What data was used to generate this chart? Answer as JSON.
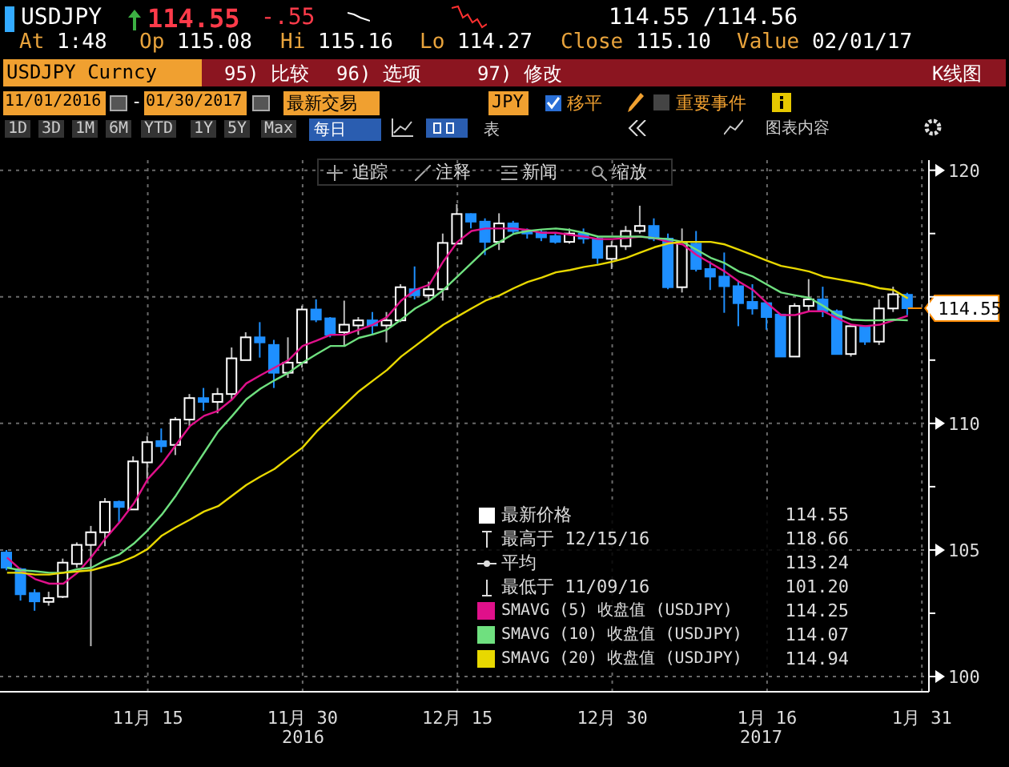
{
  "chart_data": {
    "type": "candlestick",
    "title": "USDJPY",
    "categories": [
      null,
      null,
      null,
      null,
      null,
      null,
      null,
      null,
      null,
      null,
      "11月 15",
      null,
      null,
      null,
      null,
      null,
      null,
      null,
      null,
      null,
      null,
      "11月 30",
      null,
      null,
      null,
      null,
      null,
      null,
      null,
      null,
      null,
      null,
      "12月 15",
      null,
      null,
      null,
      null,
      null,
      null,
      null,
      null,
      null,
      null,
      "12月 30",
      null,
      null,
      null,
      null,
      null,
      null,
      null,
      null,
      null,
      null,
      "1月 16",
      null,
      null,
      null,
      null,
      null,
      null,
      null,
      null,
      null,
      null,
      "1月 31"
    ],
    "ohlc": [
      [
        104.9,
        105.0,
        104.2,
        104.3
      ],
      [
        104.24,
        104.3,
        103.0,
        103.25
      ],
      [
        103.3,
        103.45,
        102.6,
        102.97
      ],
      [
        102.95,
        103.35,
        102.8,
        103.1
      ],
      [
        103.15,
        104.66,
        103.1,
        104.5
      ],
      [
        104.45,
        105.3,
        104.3,
        105.2
      ],
      [
        105.2,
        105.95,
        101.2,
        105.7
      ],
      [
        105.7,
        107.05,
        105.15,
        106.9
      ],
      [
        106.9,
        106.95,
        106.1,
        106.7
      ],
      [
        106.6,
        108.7,
        106.6,
        108.5
      ],
      [
        108.46,
        109.5,
        107.8,
        109.26
      ],
      [
        109.3,
        109.8,
        108.85,
        109.1
      ],
      [
        109.15,
        110.25,
        108.75,
        110.15
      ],
      [
        110.15,
        111.16,
        109.9,
        111.0
      ],
      [
        111.0,
        111.4,
        110.5,
        110.85
      ],
      [
        110.85,
        111.4,
        110.4,
        111.16
      ],
      [
        111.16,
        113.0,
        110.95,
        112.57
      ],
      [
        112.5,
        113.6,
        112.5,
        113.4
      ],
      [
        113.4,
        114.0,
        112.6,
        113.2
      ],
      [
        113.1,
        113.3,
        111.4,
        112.0
      ],
      [
        112.0,
        113.4,
        111.8,
        112.4
      ],
      [
        112.4,
        114.65,
        112.2,
        114.5
      ],
      [
        114.5,
        114.9,
        114.0,
        114.1
      ],
      [
        114.15,
        114.2,
        113.4,
        113.5
      ],
      [
        113.6,
        114.85,
        113.05,
        113.9
      ],
      [
        113.87,
        114.2,
        113.5,
        114.07
      ],
      [
        114.07,
        114.4,
        113.5,
        113.87
      ],
      [
        113.87,
        114.4,
        113.2,
        114.07
      ],
      [
        114.07,
        115.5,
        114.0,
        115.38
      ],
      [
        115.3,
        116.2,
        114.9,
        115.06
      ],
      [
        115.06,
        115.6,
        114.85,
        115.3
      ],
      [
        115.3,
        117.5,
        114.85,
        117.13
      ],
      [
        117.1,
        118.66,
        117.1,
        118.27
      ],
      [
        118.27,
        118.3,
        117.7,
        117.97
      ],
      [
        117.97,
        118.1,
        116.65,
        117.17
      ],
      [
        117.17,
        118.3,
        116.85,
        117.9
      ],
      [
        117.9,
        118.0,
        117.5,
        117.6
      ],
      [
        117.6,
        117.7,
        117.3,
        117.5
      ],
      [
        117.55,
        117.65,
        117.2,
        117.35
      ],
      [
        117.4,
        117.5,
        117.1,
        117.17
      ],
      [
        117.17,
        117.7,
        117.1,
        117.5
      ],
      [
        117.5,
        117.7,
        117.1,
        117.3
      ],
      [
        117.3,
        117.4,
        116.3,
        116.54
      ],
      [
        116.5,
        117.2,
        116.1,
        117.0
      ],
      [
        117.0,
        117.8,
        116.85,
        117.6
      ],
      [
        117.6,
        118.6,
        117.5,
        117.8
      ],
      [
        117.8,
        118.1,
        117.2,
        117.3
      ],
      [
        117.3,
        117.5,
        115.3,
        115.38
      ],
      [
        115.38,
        117.7,
        115.17,
        117.17
      ],
      [
        117.1,
        117.6,
        116.0,
        116.1
      ],
      [
        116.1,
        116.4,
        115.27,
        115.8
      ],
      [
        115.8,
        116.75,
        114.37,
        115.42
      ],
      [
        115.42,
        115.6,
        113.84,
        114.75
      ],
      [
        114.8,
        115.5,
        114.3,
        114.54
      ],
      [
        114.75,
        114.75,
        113.7,
        114.2
      ],
      [
        114.3,
        114.3,
        112.64,
        112.64
      ],
      [
        112.64,
        114.75,
        112.64,
        114.64
      ],
      [
        114.64,
        115.7,
        114.4,
        114.9
      ],
      [
        114.9,
        115.4,
        114.2,
        114.43
      ],
      [
        114.43,
        114.5,
        112.74,
        112.74
      ],
      [
        112.74,
        113.84,
        112.64,
        113.84
      ],
      [
        113.84,
        113.84,
        113.1,
        113.23
      ],
      [
        113.23,
        114.9,
        113.1,
        114.54
      ],
      [
        114.54,
        115.4,
        114.4,
        115.1
      ],
      [
        115.08,
        115.16,
        114.27,
        114.55
      ],
      null
    ],
    "colors": [
      "#1e8fff",
      "#1e8fff",
      "#1e8fff",
      "#ffffff",
      "#ffffff",
      "#ffffff",
      "#ffffff",
      "#ffffff",
      "#1e8fff",
      "#ffffff",
      "#ffffff",
      "#1e8fff",
      "#ffffff",
      "#ffffff",
      "#1e8fff",
      "#ffffff",
      "#ffffff",
      "#ffffff",
      "#1e8fff",
      "#1e8fff",
      "#ffffff",
      "#ffffff",
      "#1e8fff",
      "#1e8fff",
      "#ffffff",
      "#ffffff",
      "#1e8fff",
      "#ffffff",
      "#ffffff",
      "#1e8fff",
      "#ffffff",
      "#ffffff",
      "#ffffff",
      "#1e8fff",
      "#1e8fff",
      "#ffffff",
      "#1e8fff",
      "#1e8fff",
      "#1e8fff",
      "#1e8fff",
      "#ffffff",
      "#1e8fff",
      "#1e8fff",
      "#ffffff",
      "#ffffff",
      "#ffffff",
      "#1e8fff",
      "#1e8fff",
      "#ffffff",
      "#1e8fff",
      "#1e8fff",
      "#1e8fff",
      "#1e8fff",
      "#1e8fff",
      "#1e8fff",
      "#1e8fff",
      "#ffffff",
      "#ffffff",
      "#1e8fff",
      "#1e8fff",
      "#ffffff",
      "#1e8fff",
      "#ffffff",
      "#ffffff",
      "#1e8fff",
      null
    ],
    "series": [
      {
        "type": "line",
        "name": "SMAVG (5) 收盘值 (USDJPY)",
        "color": "#e0108a",
        "values": [
          104.7,
          104.2,
          103.85,
          103.67,
          103.67,
          104.1,
          104.73,
          105.46,
          106.1,
          106.83,
          107.8,
          108.4,
          109.15,
          109.9,
          110.3,
          110.5,
          110.95,
          111.58,
          111.9,
          112.2,
          112.5,
          113.06,
          113.27,
          113.5,
          113.5,
          113.7,
          113.9,
          114.2,
          114.85,
          115.27,
          115.48,
          116.4,
          117.17,
          117.6,
          117.7,
          117.7,
          117.7,
          117.64,
          117.53,
          117.53,
          117.45,
          117.38,
          117.28,
          117.28,
          117.32,
          117.38,
          117.32,
          117.17,
          117.07,
          116.65,
          116.33,
          116.0,
          115.6,
          115.27,
          114.75,
          114.28,
          114.28,
          114.43,
          114.43,
          114.15,
          113.9,
          113.84,
          113.9,
          114.07,
          114.25,
          null
        ]
      },
      {
        "type": "line",
        "name": "SMAVG (10) 收盘值 (USDJPY)",
        "color": "#6fe07f",
        "values": [
          104.3,
          104.2,
          104.16,
          104.1,
          104.1,
          104.24,
          104.3,
          104.6,
          104.83,
          105.25,
          105.78,
          106.4,
          107.15,
          108.0,
          108.84,
          109.68,
          110.3,
          110.95,
          111.37,
          111.7,
          112.0,
          112.4,
          112.74,
          113.06,
          113.06,
          113.38,
          113.52,
          113.7,
          114.1,
          114.54,
          114.85,
          115.27,
          115.8,
          116.33,
          116.86,
          117.17,
          117.49,
          117.6,
          117.66,
          117.7,
          117.64,
          117.53,
          117.38,
          117.38,
          117.38,
          117.38,
          117.32,
          117.28,
          117.17,
          116.86,
          116.54,
          116.33,
          116.0,
          115.8,
          115.48,
          115.17,
          115.06,
          114.96,
          114.64,
          114.28,
          114.1,
          114.07,
          114.07,
          114.1,
          114.07,
          null
        ]
      },
      {
        "type": "line",
        "name": "SMAVG (20) 收盘值 (USDJPY)",
        "color": "#e8d800",
        "values": [
          104.1,
          104.1,
          104.03,
          104.03,
          104.1,
          104.15,
          104.2,
          104.35,
          104.5,
          104.73,
          105.04,
          105.57,
          105.9,
          106.2,
          106.52,
          106.73,
          107.15,
          107.57,
          107.9,
          108.2,
          108.63,
          109.05,
          109.68,
          110.21,
          110.74,
          111.27,
          111.69,
          112.11,
          112.64,
          113.06,
          113.48,
          113.9,
          114.22,
          114.54,
          114.85,
          115.06,
          115.34,
          115.59,
          115.76,
          115.97,
          116.06,
          116.18,
          116.27,
          116.39,
          116.54,
          116.75,
          116.96,
          117.11,
          117.17,
          117.17,
          117.17,
          117.07,
          116.86,
          116.65,
          116.43,
          116.22,
          116.12,
          116.0,
          115.8,
          115.7,
          115.6,
          115.49,
          115.34,
          115.27,
          114.94,
          null
        ]
      }
    ],
    "ylim": [
      99.4,
      120.4
    ],
    "yticks": [
      100,
      {
        "value": 102.5,
        "label": null
      },
      105,
      {
        "value": 107.5,
        "label": null
      },
      110,
      {
        "value": 112.5,
        "label": null
      },
      {
        "value": 115,
        "label": null
      },
      {
        "value": 117.5,
        "label": null
      },
      120
    ],
    "grid": true,
    "legend": "bottom right",
    "ref_lines": [
      {
        "axis": "y",
        "value": 114.55,
        "label": "114.55",
        "color": "#ff8c00"
      }
    ],
    "annotations": [
      "114.55",
      "-.55",
      "114.55 /114.56",
      "At 1:48",
      "Op 115.08",
      "Hi 115.16",
      "Lo 114.27",
      "Close 115.10",
      "Value 02/01/17",
      "USDJPY Curncy",
      "95) 比较",
      "96) 选项",
      "97) 修改",
      "K线图",
      "11/01/2016",
      "01/30/2017",
      "最新交易",
      "JPY",
      "移平",
      "重要事件",
      "1D",
      "3D",
      "1M",
      "6M",
      "YTD",
      "1Y",
      "5Y",
      "Max",
      "每日",
      "表",
      "图表内容",
      "追踪",
      "注释",
      "新闻",
      "缩放",
      "最新价格",
      "114.55",
      "最高于 12/15/16",
      "118.66",
      "平均",
      "113.24",
      "最低于 11/09/16",
      "101.20",
      "114.25",
      "114.07",
      "114.94",
      "2016",
      "2017",
      "-"
    ]
  }
}
